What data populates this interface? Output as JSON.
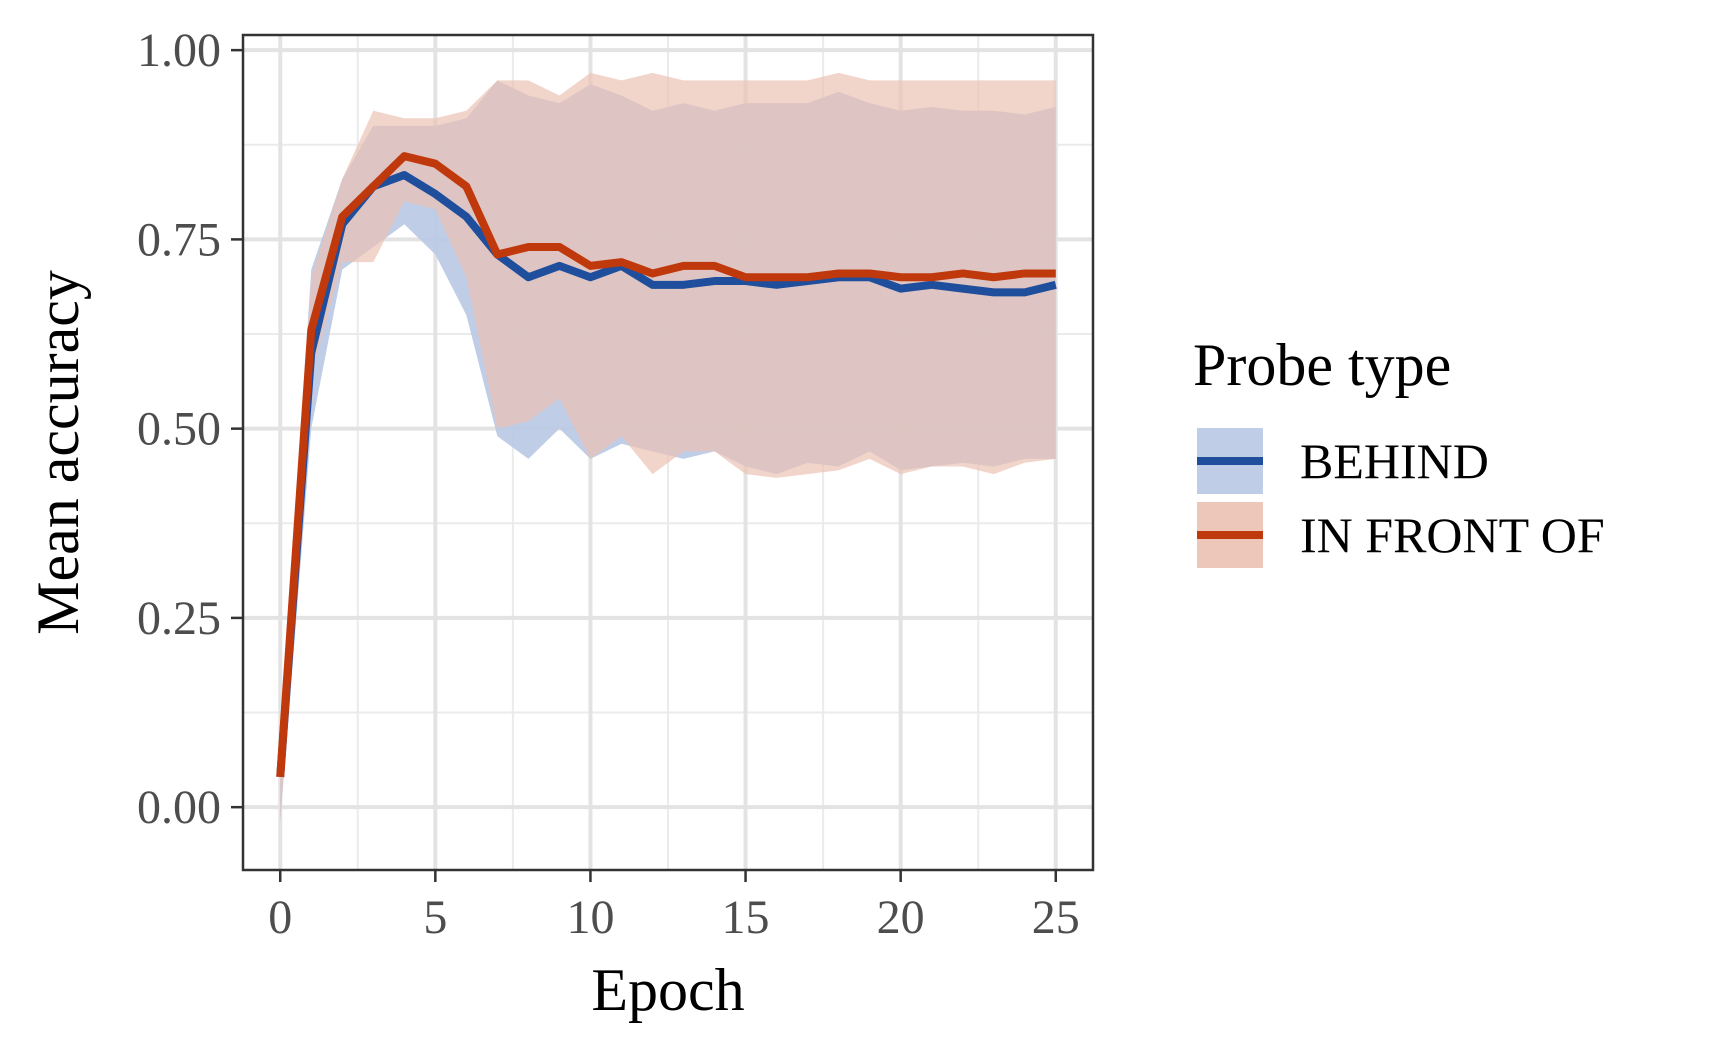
{
  "chart_data": {
    "type": "line",
    "xlabel": "Epoch",
    "ylabel": "Mean accuracy",
    "xlim": [
      -1.2,
      26.2
    ],
    "ylim": [
      -0.083,
      1.02
    ],
    "x_ticks": [
      "0",
      "5",
      "10",
      "15",
      "20",
      "25"
    ],
    "y_ticks": [
      "0.00",
      "0.25",
      "0.50",
      "0.75",
      "1.00"
    ],
    "grid": true,
    "legend": {
      "title": "Probe type",
      "position": "right"
    },
    "x": [
      0,
      1,
      2,
      3,
      4,
      5,
      6,
      7,
      8,
      9,
      10,
      11,
      12,
      13,
      14,
      15,
      16,
      17,
      18,
      19,
      20,
      21,
      22,
      23,
      24,
      25
    ],
    "series": [
      {
        "name": "BEHIND",
        "color": "#1f4e9c",
        "fill_color": "#b8c8e4",
        "values": [
          0.04,
          0.6,
          0.77,
          0.82,
          0.835,
          0.81,
          0.78,
          0.73,
          0.7,
          0.715,
          0.7,
          0.715,
          0.69,
          0.69,
          0.695,
          0.695,
          0.69,
          0.695,
          0.7,
          0.7,
          0.685,
          0.69,
          0.685,
          0.68,
          0.68,
          0.69
        ],
        "lower": [
          -0.02,
          0.5,
          0.71,
          0.74,
          0.77,
          0.73,
          0.65,
          0.49,
          0.46,
          0.5,
          0.46,
          0.48,
          0.47,
          0.46,
          0.47,
          0.45,
          0.44,
          0.455,
          0.45,
          0.47,
          0.445,
          0.45,
          0.455,
          0.45,
          0.46,
          0.46
        ],
        "upper": [
          0.08,
          0.71,
          0.83,
          0.9,
          0.9,
          0.9,
          0.91,
          0.96,
          0.94,
          0.93,
          0.955,
          0.94,
          0.92,
          0.93,
          0.92,
          0.93,
          0.93,
          0.93,
          0.945,
          0.93,
          0.92,
          0.925,
          0.92,
          0.92,
          0.915,
          0.925
        ]
      },
      {
        "name": "IN FRONT OF",
        "color": "#c0390c",
        "fill_color": "#ebc2b3",
        "values": [
          0.04,
          0.63,
          0.78,
          0.82,
          0.86,
          0.85,
          0.82,
          0.73,
          0.74,
          0.74,
          0.715,
          0.72,
          0.705,
          0.715,
          0.715,
          0.7,
          0.7,
          0.7,
          0.705,
          0.705,
          0.7,
          0.7,
          0.705,
          0.7,
          0.705,
          0.705
        ],
        "lower": [
          -0.02,
          0.57,
          0.72,
          0.72,
          0.8,
          0.79,
          0.7,
          0.5,
          0.51,
          0.54,
          0.46,
          0.49,
          0.44,
          0.47,
          0.47,
          0.44,
          0.435,
          0.44,
          0.445,
          0.46,
          0.44,
          0.45,
          0.45,
          0.44,
          0.455,
          0.46
        ],
        "upper": [
          0.08,
          0.7,
          0.83,
          0.92,
          0.91,
          0.91,
          0.92,
          0.96,
          0.96,
          0.94,
          0.97,
          0.96,
          0.97,
          0.96,
          0.96,
          0.96,
          0.96,
          0.96,
          0.97,
          0.96,
          0.96,
          0.96,
          0.96,
          0.96,
          0.96,
          0.96
        ]
      }
    ]
  }
}
